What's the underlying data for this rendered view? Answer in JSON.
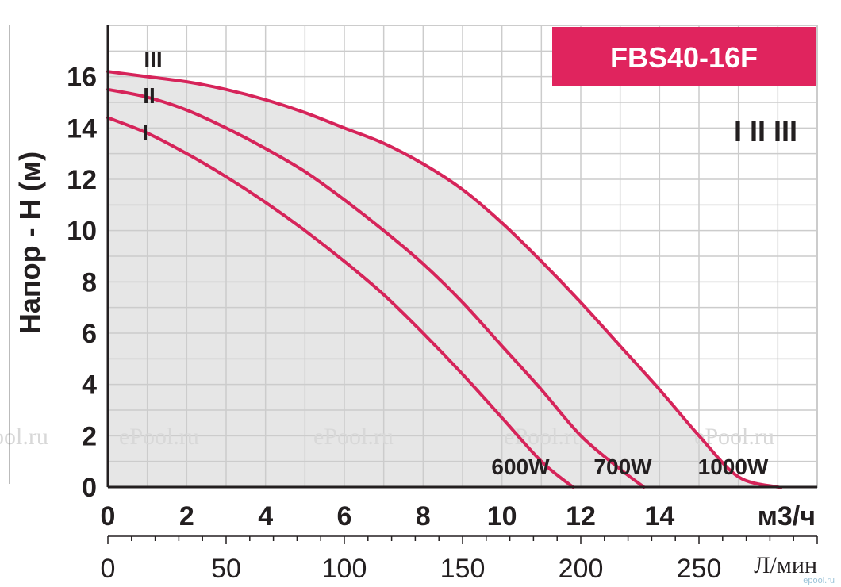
{
  "chart_data": {
    "type": "line",
    "title": "FBS40-16F",
    "ylabel": "Напор - Н (м)",
    "xlabel": "м3/ч",
    "xlabel_secondary": "Л/мин",
    "xlim": [
      0,
      18
    ],
    "ylim": [
      0,
      18
    ],
    "x_ticks": [
      "0",
      "2",
      "4",
      "6",
      "8",
      "10",
      "12",
      "14"
    ],
    "y_ticks": [
      "0",
      "2",
      "4",
      "6",
      "8",
      "10",
      "12",
      "14",
      "16"
    ],
    "x_secondary_ticks": [
      "0",
      "50",
      "100",
      "150",
      "200",
      "250"
    ],
    "speed_legend": "I II III",
    "colors": {
      "curve": "#d6245a",
      "title_bg": "#e0245e",
      "grid": "#cccccc",
      "fill": "#e6e6e6"
    },
    "series": [
      {
        "name": "I",
        "power": "600W",
        "x": [
          0,
          1,
          2,
          3,
          4,
          5,
          6,
          7,
          8,
          9,
          10,
          11,
          11.8
        ],
        "y": [
          14.4,
          13.8,
          13.0,
          12.1,
          11.1,
          10.0,
          8.8,
          7.5,
          6.0,
          4.4,
          2.7,
          1.0,
          0
        ]
      },
      {
        "name": "II",
        "power": "700W",
        "x": [
          0,
          1,
          2,
          3,
          4,
          5,
          6,
          7,
          8,
          9,
          10,
          11,
          12,
          13,
          13.6
        ],
        "y": [
          15.5,
          15.2,
          14.7,
          14.0,
          13.2,
          12.3,
          11.2,
          10.0,
          8.7,
          7.2,
          5.5,
          3.8,
          2.0,
          0.7,
          0
        ]
      },
      {
        "name": "III",
        "power": "1000W",
        "x": [
          0,
          1,
          2,
          3,
          4,
          5,
          6,
          7,
          8,
          9,
          10,
          11,
          12,
          13,
          14,
          15,
          16,
          17,
          17.0
        ],
        "y": [
          16.2,
          16.0,
          15.8,
          15.5,
          15.1,
          14.6,
          14.0,
          13.4,
          12.6,
          11.6,
          10.3,
          8.8,
          7.2,
          5.5,
          3.8,
          2.0,
          0.4,
          0,
          0
        ]
      }
    ]
  },
  "watermark": {
    "text": "ePool.ru",
    "small": "epool.ru"
  }
}
